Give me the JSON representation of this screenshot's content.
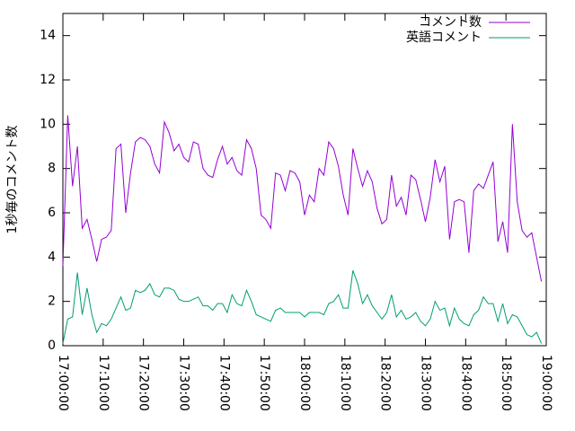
{
  "chart_data": {
    "type": "line",
    "ylabel": "1秒毎のコメント数",
    "x": [
      "17:00:00",
      "17:01:12",
      "17:02:24",
      "17:03:36",
      "17:04:48",
      "17:06:00",
      "17:07:12",
      "17:08:24",
      "17:09:36",
      "17:10:48",
      "17:12:00",
      "17:13:12",
      "17:14:24",
      "17:15:36",
      "17:16:48",
      "17:18:00",
      "17:19:12",
      "17:20:24",
      "17:21:36",
      "17:22:48",
      "17:24:00",
      "17:25:12",
      "17:26:24",
      "17:27:36",
      "17:28:48",
      "17:30:00",
      "17:31:12",
      "17:32:24",
      "17:33:36",
      "17:34:48",
      "17:36:00",
      "17:37:12",
      "17:38:24",
      "17:39:36",
      "17:40:48",
      "17:42:00",
      "17:43:12",
      "17:44:24",
      "17:45:36",
      "17:46:48",
      "17:48:00",
      "17:49:12",
      "17:50:24",
      "17:51:36",
      "17:52:48",
      "17:54:00",
      "17:55:12",
      "17:56:24",
      "17:57:36",
      "17:58:48",
      "18:00:00",
      "18:01:12",
      "18:02:24",
      "18:03:36",
      "18:04:48",
      "18:06:00",
      "18:07:12",
      "18:08:24",
      "18:09:36",
      "18:10:48",
      "18:12:00",
      "18:13:12",
      "18:14:24",
      "18:15:36",
      "18:16:48",
      "18:18:00",
      "18:19:12",
      "18:20:24",
      "18:21:36",
      "18:22:48",
      "18:24:00",
      "18:25:12",
      "18:26:24",
      "18:27:36",
      "18:28:48",
      "18:30:00",
      "18:31:12",
      "18:32:24",
      "18:33:36",
      "18:34:48",
      "18:36:00",
      "18:37:12",
      "18:38:24",
      "18:39:36",
      "18:40:48",
      "18:42:00",
      "18:43:12",
      "18:44:24",
      "18:45:36",
      "18:46:48",
      "18:48:00",
      "18:49:12",
      "18:50:24",
      "18:51:36",
      "18:52:48",
      "18:54:00",
      "18:55:12",
      "18:56:24",
      "18:57:36",
      "18:58:48"
    ],
    "series": [
      {
        "name": "コメント数",
        "color": "#9400d3",
        "values": [
          3.6,
          10.4,
          7.2,
          9,
          5.3,
          5.7,
          4.8,
          3.8,
          4.8,
          4.9,
          5.2,
          8.9,
          9.1,
          6,
          7.8,
          9.2,
          9.4,
          9.3,
          9,
          8.2,
          7.8,
          10.1,
          9.6,
          8.8,
          9.1,
          8.5,
          8.3,
          9.2,
          9.1,
          8,
          7.7,
          7.6,
          8.4,
          9,
          8.2,
          8.5,
          7.9,
          7.7,
          9.3,
          8.9,
          8,
          5.9,
          5.7,
          5.3,
          7.8,
          7.7,
          7,
          7.9,
          7.8,
          7.4,
          5.9,
          6.8,
          6.5,
          8,
          7.7,
          9.2,
          8.9,
          8.1,
          6.8,
          5.9,
          8.9,
          8,
          7.2,
          7.9,
          7.4,
          6.2,
          5.5,
          5.7,
          7.7,
          6.3,
          6.7,
          5.9,
          7.7,
          7.5,
          6.6,
          5.6,
          6.7,
          8.4,
          7.4,
          8.1,
          4.8,
          6.5,
          6.6,
          6.5,
          4.2,
          7,
          7.3,
          7.1,
          7.7,
          8.3,
          4.7,
          5.6,
          4.2,
          10,
          6.5,
          5.2,
          4.9,
          5.1,
          4,
          2.9
        ]
      },
      {
        "name": "英語コメント",
        "color": "#009e73",
        "values": [
          0.1,
          1.2,
          1.3,
          3.3,
          1.4,
          2.6,
          1.4,
          0.6,
          1,
          0.9,
          1.2,
          1.7,
          2.2,
          1.6,
          1.7,
          2.5,
          2.4,
          2.5,
          2.8,
          2.3,
          2.2,
          2.6,
          2.6,
          2.5,
          2.1,
          2,
          2,
          2.1,
          2.2,
          1.8,
          1.8,
          1.6,
          1.9,
          1.9,
          1.5,
          2.3,
          1.9,
          1.8,
          2.5,
          2,
          1.4,
          1.3,
          1.2,
          1.1,
          1.6,
          1.7,
          1.5,
          1.5,
          1.5,
          1.5,
          1.3,
          1.5,
          1.5,
          1.5,
          1.4,
          1.9,
          2,
          2.3,
          1.7,
          1.7,
          3.4,
          2.8,
          1.9,
          2.3,
          1.8,
          1.5,
          1.2,
          1.5,
          2.3,
          1.3,
          1.6,
          1.2,
          1.3,
          1.5,
          1.1,
          0.9,
          1.2,
          2,
          1.6,
          1.7,
          0.9,
          1.7,
          1.2,
          1,
          0.9,
          1.4,
          1.6,
          2.2,
          1.9,
          1.9,
          1.1,
          1.9,
          1,
          1.4,
          1.3,
          0.9,
          0.5,
          0.4,
          0.6,
          0.1
        ]
      }
    ],
    "xlim": [
      "17:00:00",
      "19:00:00"
    ],
    "xticks": [
      "17:00:00",
      "17:10:00",
      "17:20:00",
      "17:30:00",
      "17:40:00",
      "17:50:00",
      "18:00:00",
      "18:10:00",
      "18:20:00",
      "18:30:00",
      "18:40:00",
      "18:50:00",
      "19:00:00"
    ],
    "ylim": [
      0,
      15
    ],
    "yticks": [
      0,
      2,
      4,
      6,
      8,
      10,
      12,
      14
    ],
    "legend": "top-right"
  }
}
